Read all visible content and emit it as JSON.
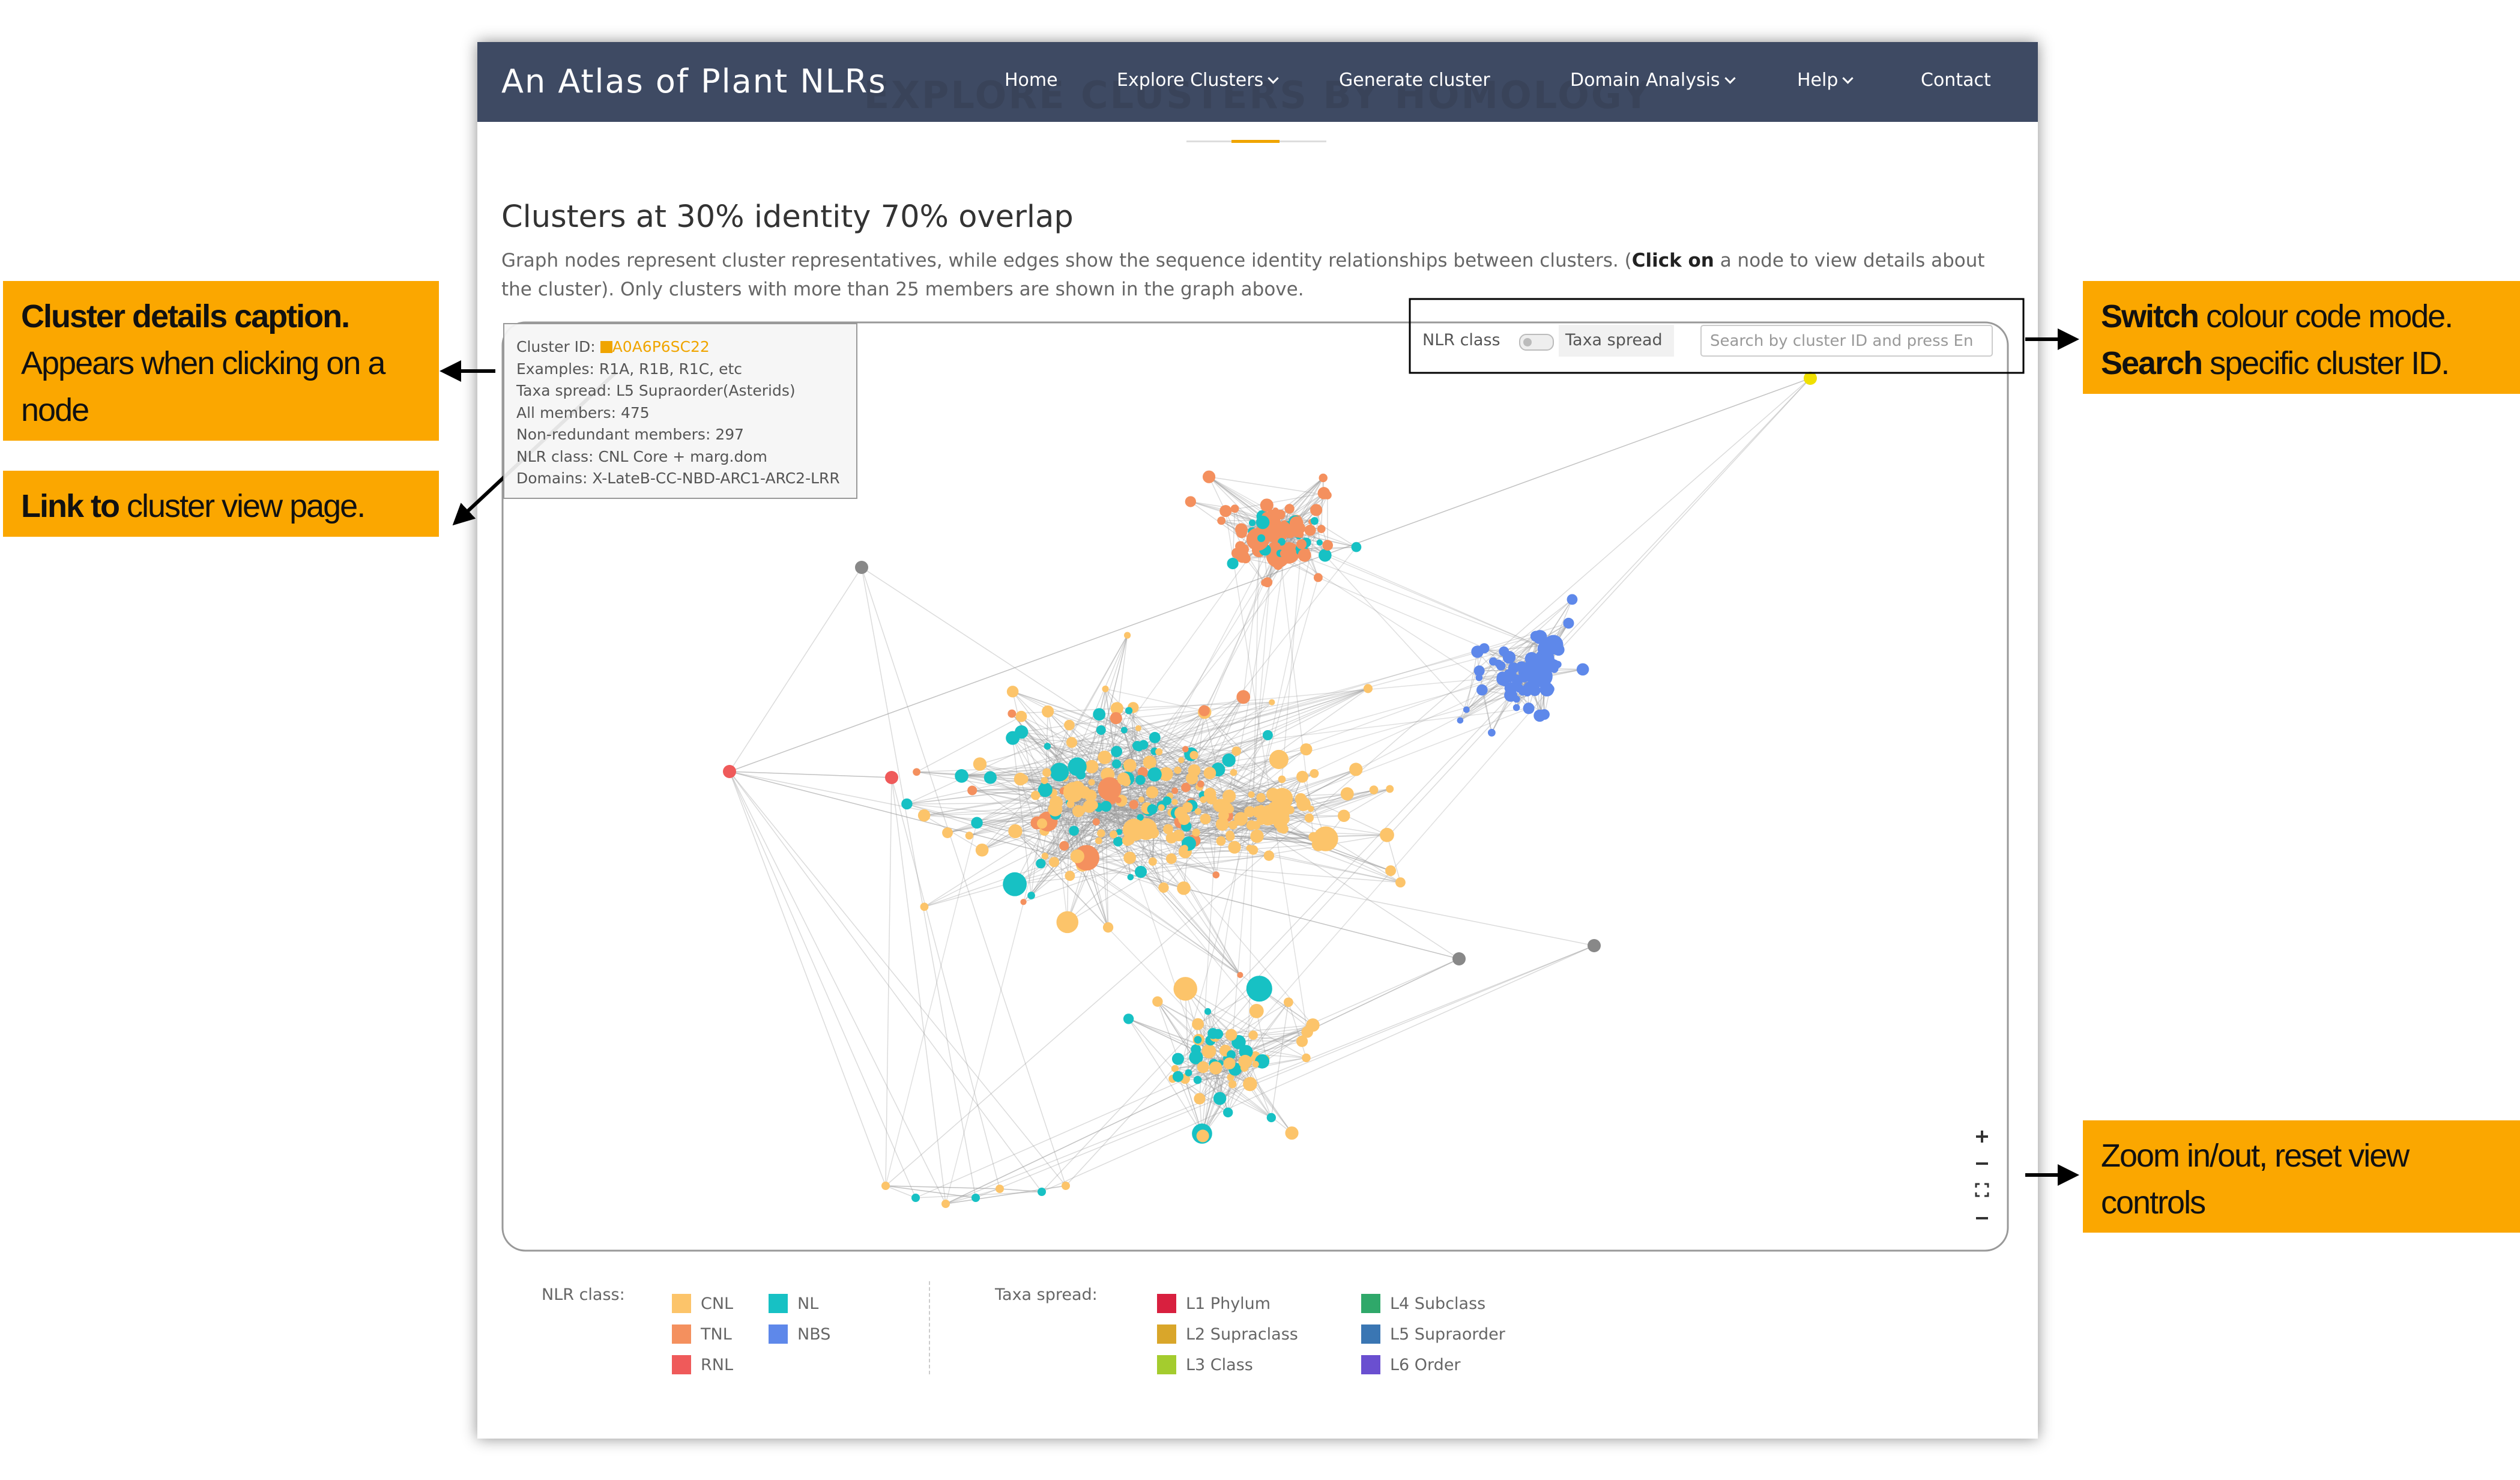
{
  "header": {
    "title": "An Atlas of Plant NLRs",
    "nav": [
      "Home",
      "Explore Clusters",
      "Generate cluster",
      "Domain Analysis",
      "Help",
      "Contact"
    ]
  },
  "page": {
    "banner": "EXPLORE CLUSTERS BY HOMOLOGY",
    "heading": "Clusters at 30% identity 70% overlap",
    "description": {
      "before": "Graph nodes represent cluster representatives, while edges show the sequence identity relationships between clusters. (",
      "bold": "Click on",
      "after": "a node to view details about the cluster). Only clusters with more than 25 members are shown in the graph above."
    }
  },
  "caption": {
    "id_label": "Cluster ID:",
    "id_link": "A0A6P6SC22",
    "lines": [
      "Examples: R1A, R1B, R1C, etc",
      "Taxa spread: L5 Supraorder(Asterids)",
      "All members: 475",
      "Non-redundant members: 297",
      "NLR class: CNL Core + marg.dom",
      "Domains: X-LateB-CC-NBD-ARC1-ARC2-LRR"
    ]
  },
  "controls": {
    "toggle_left": "NLR class",
    "toggle_right": "Taxa spread",
    "search_placeholder": "Search by cluster ID and press En"
  },
  "legend": {
    "nlr_title": "NLR class:",
    "nlr": [
      {
        "label": "CNL",
        "color": "#fcc46a"
      },
      {
        "label": "TNL",
        "color": "#f4905e"
      },
      {
        "label": "RNL",
        "color": "#ef5a5a"
      },
      {
        "label": "NL",
        "color": "#17c1c4"
      },
      {
        "label": "NBS",
        "color": "#5e88ea"
      }
    ],
    "taxa_title": "Taxa spread:",
    "taxa": [
      {
        "label": "L1 Phylum",
        "color": "#d8203f"
      },
      {
        "label": "L2 Supraclass",
        "color": "#d9a62a"
      },
      {
        "label": "L3 Class",
        "color": "#a4cc2e"
      },
      {
        "label": "L4 Subclass",
        "color": "#2fa86a"
      },
      {
        "label": "L5 Supraorder",
        "color": "#3a76b3"
      },
      {
        "label": "L6 Order",
        "color": "#6a4fd0"
      }
    ]
  },
  "annotations": [
    {
      "bold": "Cluster details caption.",
      "text": "Appears when clicking on a node"
    },
    {
      "bold": "Link to",
      "text": "cluster view page."
    },
    {
      "bold": "Switch",
      "text": "colour code mode.",
      "bold2": "Search",
      "text2": "specific cluster ID."
    },
    {
      "text": "Zoom in/out, reset view controls"
    }
  ]
}
